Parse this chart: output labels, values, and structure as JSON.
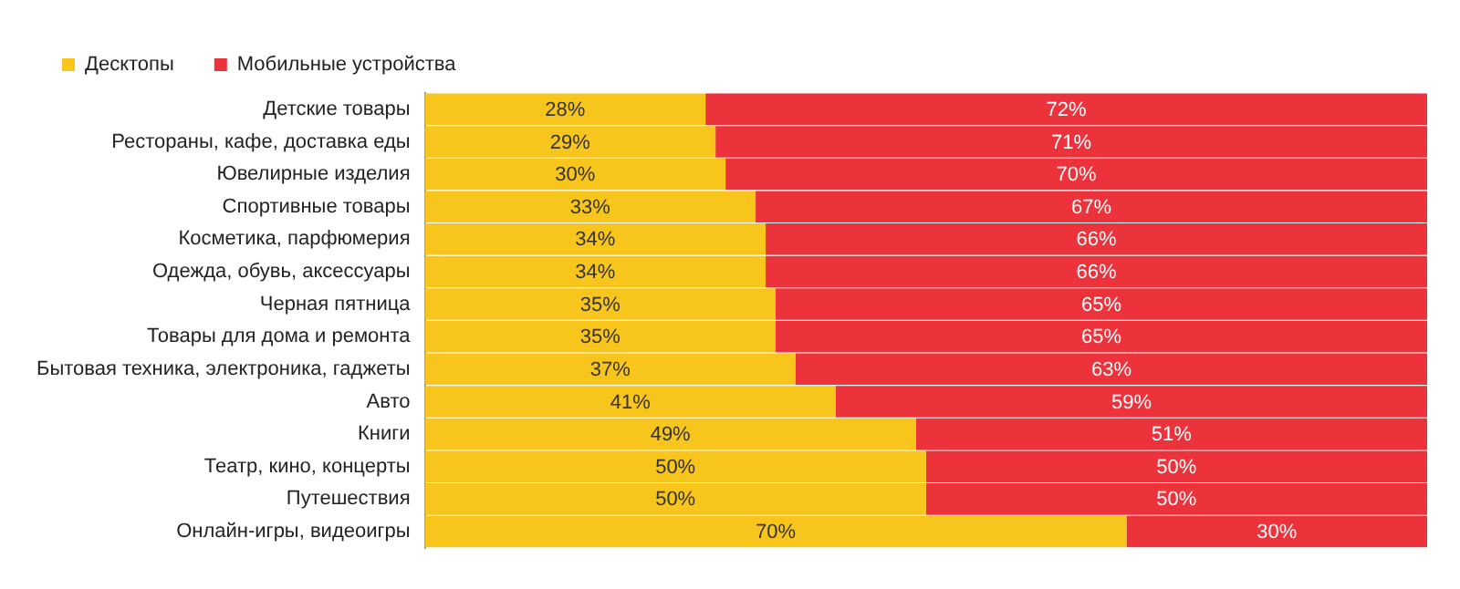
{
  "chart_data": {
    "type": "bar",
    "orientation": "horizontal",
    "stacked": true,
    "legend": "top left",
    "grid": false,
    "tick_labels": "y",
    "categories": [
      "Детские товары",
      "Рестораны, кафе, доставка еды",
      "Ювелирные изделия",
      "Спортивные товары",
      "Косметика, парфюмерия",
      "Одежда, обувь, аксессуары",
      "Черная пятница",
      "Товары для дома и ремонта",
      "Бытовая техника, электроника, гаджеты",
      "Авто",
      "Книги",
      "Театр, кино, концерты",
      "Путешествия",
      "Онлайн-игры, видеоигры"
    ],
    "series": [
      {
        "name": "Десктопы",
        "color": "#f8c51c",
        "values": [
          28,
          29,
          30,
          33,
          34,
          34,
          35,
          35,
          37,
          41,
          49,
          50,
          50,
          70
        ],
        "value_labels": [
          "28%",
          "29%",
          "30%",
          "33%",
          "34%",
          "34%",
          "35%",
          "35%",
          "37%",
          "41%",
          "49%",
          "50%",
          "50%",
          "70%"
        ]
      },
      {
        "name": "Мобильные устройства",
        "color": "#ec333b",
        "values": [
          72,
          71,
          70,
          67,
          66,
          66,
          65,
          65,
          63,
          59,
          51,
          50,
          50,
          30
        ],
        "value_labels": [
          "72%",
          "71%",
          "70%",
          "67%",
          "66%",
          "66%",
          "65%",
          "65%",
          "63%",
          "59%",
          "51%",
          "50%",
          "50%",
          "30%"
        ]
      }
    ]
  }
}
